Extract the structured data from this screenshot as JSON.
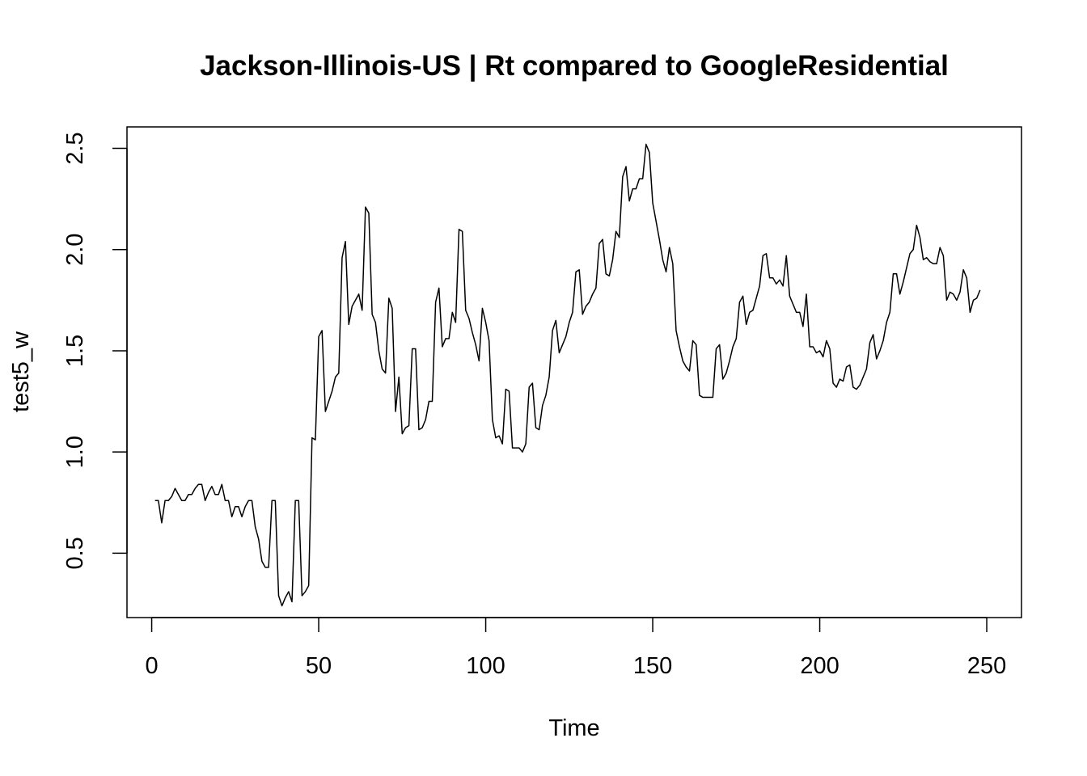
{
  "chart_data": {
    "type": "line",
    "title": "Jackson-Illinois-US | Rt compared to GoogleResidential",
    "xlabel": "Time",
    "ylabel": "test5_w",
    "xlim": [
      -7.4,
      260.4
    ],
    "ylim": [
      0.182,
      2.606
    ],
    "xticks": [
      0,
      50,
      100,
      150,
      200,
      250
    ],
    "yticks": [
      0.5,
      1.0,
      1.5,
      2.0,
      2.5
    ],
    "xtick_labels": [
      "0",
      "50",
      "100",
      "150",
      "200",
      "250"
    ],
    "ytick_labels": [
      "0.5",
      "1.0",
      "1.5",
      "2.0",
      "2.5"
    ],
    "grid": false,
    "legend": "none",
    "line_color": "#000000",
    "series": [
      {
        "x": [
          1,
          2,
          3,
          4,
          5,
          6,
          7,
          8,
          9,
          10,
          11,
          12,
          13,
          14,
          15,
          16,
          17,
          18,
          19,
          20,
          21,
          22,
          23,
          24,
          25,
          26,
          27,
          28,
          29,
          30,
          31,
          32,
          33,
          34,
          35,
          36,
          37,
          38,
          39,
          40,
          41,
          42,
          43,
          44,
          45,
          46,
          47,
          48,
          49,
          50,
          51,
          52,
          53,
          54,
          55,
          56,
          57,
          58,
          59,
          60,
          61,
          62,
          63,
          64,
          65,
          66,
          67,
          68,
          69,
          70,
          71,
          72,
          73,
          74,
          75,
          76,
          77,
          78,
          79,
          80,
          81,
          82,
          83,
          84,
          85,
          86,
          87,
          88,
          89,
          90,
          91,
          92,
          93,
          94,
          95,
          96,
          97,
          98,
          99,
          100,
          101,
          102,
          103,
          104,
          105,
          106,
          107,
          108,
          109,
          110,
          111,
          112,
          113,
          114,
          115,
          116,
          117,
          118,
          119,
          120,
          121,
          122,
          123,
          124,
          125,
          126,
          127,
          128,
          129,
          130,
          131,
          132,
          133,
          134,
          135,
          136,
          137,
          138,
          139,
          140,
          141,
          142,
          143,
          144,
          145,
          146,
          147,
          148,
          149,
          150,
          151,
          152,
          153,
          154,
          155,
          156,
          157,
          158,
          159,
          160,
          161,
          162,
          163,
          164,
          165,
          166,
          167,
          168,
          169,
          170,
          171,
          172,
          173,
          174,
          175,
          176,
          177,
          178,
          179,
          180,
          181,
          182,
          183,
          184,
          185,
          186,
          187,
          188,
          189,
          190,
          191,
          192,
          193,
          194,
          195,
          196,
          197,
          198,
          199,
          200,
          201,
          202,
          203,
          204,
          205,
          206,
          207,
          208,
          209,
          210,
          211,
          212,
          213,
          214,
          215,
          216,
          217,
          218,
          219,
          220,
          221,
          222,
          223,
          224,
          225,
          226,
          227,
          228,
          229,
          230,
          231,
          232,
          233,
          234,
          235,
          236,
          237,
          238,
          239,
          240,
          241,
          242,
          243,
          244,
          245,
          246,
          247,
          248
        ],
        "values": [
          0.76,
          0.76,
          0.65,
          0.76,
          0.76,
          0.78,
          0.82,
          0.79,
          0.76,
          0.76,
          0.79,
          0.79,
          0.82,
          0.84,
          0.84,
          0.76,
          0.8,
          0.83,
          0.79,
          0.79,
          0.84,
          0.76,
          0.76,
          0.68,
          0.73,
          0.73,
          0.68,
          0.73,
          0.76,
          0.76,
          0.63,
          0.57,
          0.46,
          0.43,
          0.43,
          0.76,
          0.76,
          0.29,
          0.24,
          0.28,
          0.31,
          0.26,
          0.76,
          0.76,
          0.29,
          0.31,
          0.34,
          1.07,
          1.06,
          1.57,
          1.6,
          1.2,
          1.25,
          1.3,
          1.37,
          1.39,
          1.96,
          2.04,
          1.63,
          1.72,
          1.75,
          1.78,
          1.7,
          2.21,
          2.18,
          1.68,
          1.64,
          1.5,
          1.41,
          1.39,
          1.76,
          1.71,
          1.2,
          1.37,
          1.09,
          1.12,
          1.13,
          1.51,
          1.51,
          1.11,
          1.12,
          1.16,
          1.25,
          1.25,
          1.74,
          1.81,
          1.52,
          1.56,
          1.56,
          1.69,
          1.64,
          2.1,
          2.09,
          1.7,
          1.66,
          1.59,
          1.53,
          1.45,
          1.71,
          1.64,
          1.55,
          1.16,
          1.07,
          1.08,
          1.04,
          1.31,
          1.3,
          1.02,
          1.02,
          1.02,
          1.0,
          1.04,
          1.32,
          1.34,
          1.12,
          1.11,
          1.23,
          1.28,
          1.37,
          1.6,
          1.65,
          1.49,
          1.53,
          1.57,
          1.64,
          1.69,
          1.89,
          1.9,
          1.68,
          1.72,
          1.74,
          1.78,
          1.81,
          2.03,
          2.05,
          1.88,
          1.87,
          1.95,
          2.09,
          2.06,
          2.36,
          2.41,
          2.24,
          2.3,
          2.3,
          2.35,
          2.35,
          2.52,
          2.48,
          2.23,
          2.14,
          2.05,
          1.95,
          1.89,
          2.01,
          1.93,
          1.6,
          1.52,
          1.45,
          1.42,
          1.4,
          1.55,
          1.53,
          1.28,
          1.27,
          1.27,
          1.27,
          1.27,
          1.51,
          1.53,
          1.36,
          1.39,
          1.45,
          1.52,
          1.56,
          1.74,
          1.77,
          1.63,
          1.69,
          1.7,
          1.76,
          1.82,
          1.97,
          1.98,
          1.86,
          1.86,
          1.83,
          1.85,
          1.82,
          1.97,
          1.77,
          1.73,
          1.69,
          1.69,
          1.62,
          1.78,
          1.52,
          1.52,
          1.49,
          1.5,
          1.47,
          1.55,
          1.51,
          1.34,
          1.32,
          1.36,
          1.35,
          1.42,
          1.43,
          1.32,
          1.31,
          1.33,
          1.37,
          1.41,
          1.54,
          1.58,
          1.46,
          1.5,
          1.55,
          1.64,
          1.69,
          1.88,
          1.88,
          1.78,
          1.84,
          1.91,
          1.98,
          2.0,
          2.12,
          2.06,
          1.95,
          1.96,
          1.94,
          1.93,
          1.93,
          2.01,
          1.97,
          1.75,
          1.79,
          1.78,
          1.75,
          1.79,
          1.9,
          1.86,
          1.69,
          1.75,
          1.76,
          1.8
        ]
      }
    ]
  }
}
